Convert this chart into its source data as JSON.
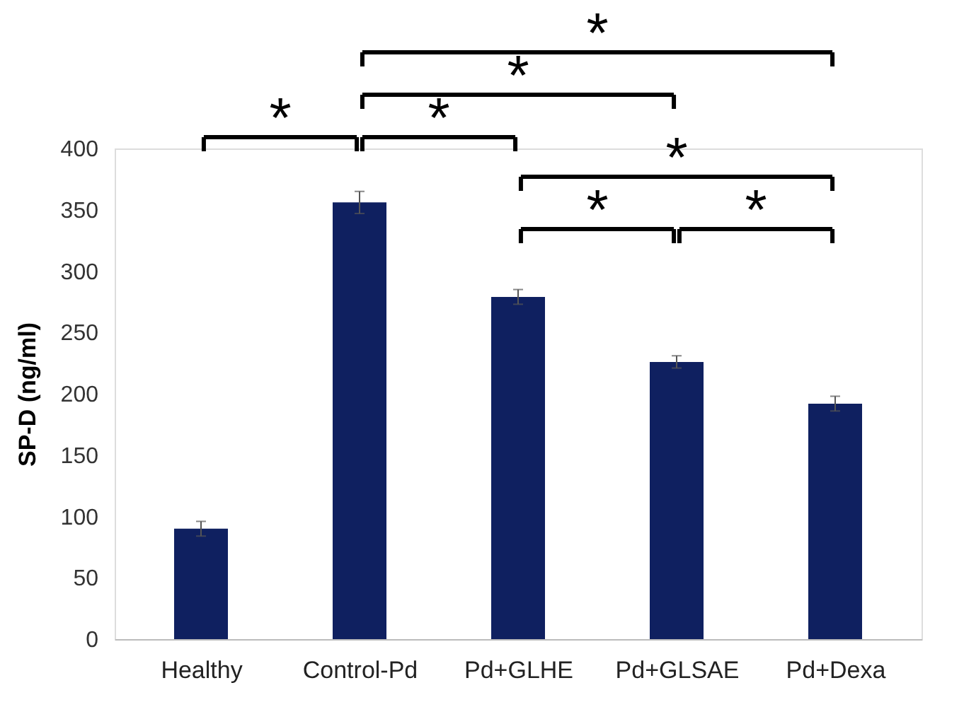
{
  "chart_data": {
    "type": "bar",
    "ylabel": "SP-D (ng/ml)",
    "categories": [
      "Healthy",
      "Control-Pd",
      "Pd+GLHE",
      "Pd+GLSAE",
      "Pd+Dexa"
    ],
    "values": [
      90,
      356,
      279,
      226,
      192
    ],
    "errors": [
      6,
      9,
      6,
      5,
      6
    ],
    "color": "#0f2060",
    "ylim": [
      0,
      400
    ],
    "yticks": [
      0,
      50,
      100,
      150,
      200,
      250,
      300,
      350,
      400
    ],
    "grid": false,
    "annotations": [
      "*",
      "*",
      "*",
      "*",
      "*",
      "*",
      "*"
    ]
  }
}
